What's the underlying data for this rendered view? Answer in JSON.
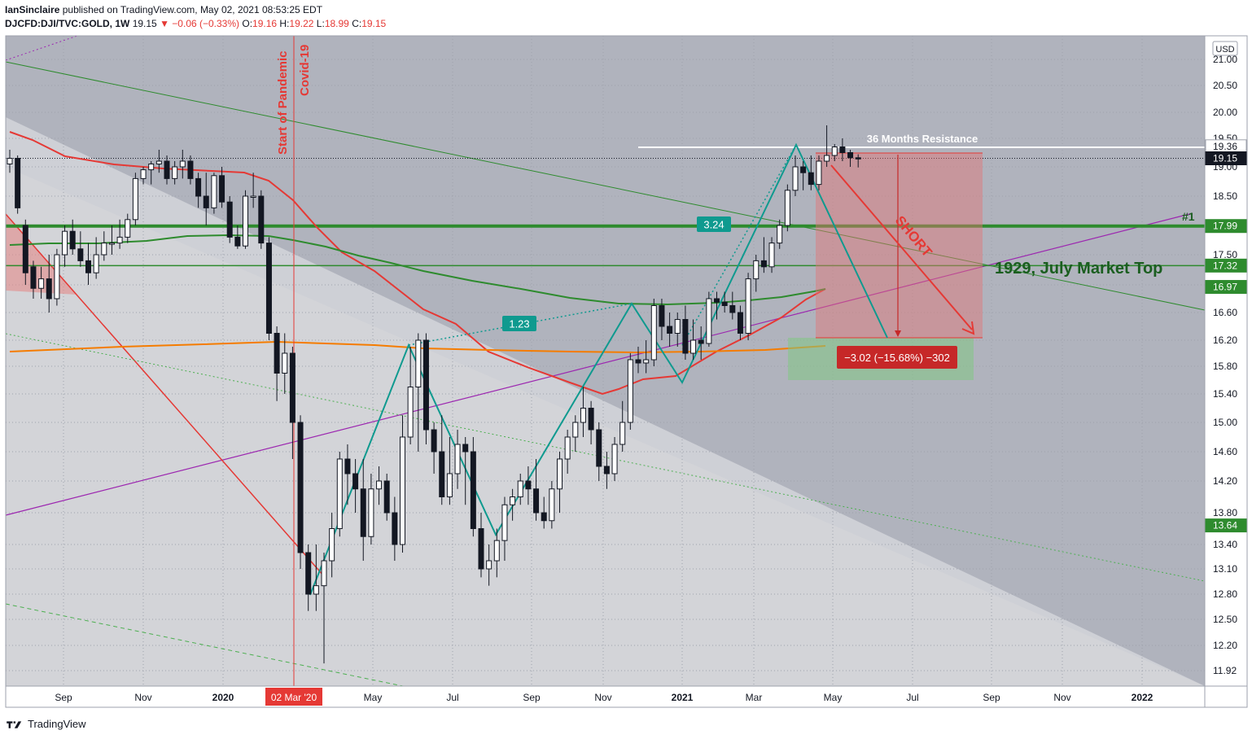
{
  "header": {
    "author": "IanSinclaire",
    "published_text": "published on TradingView.com, May 02, 2021 08:53:25 EDT",
    "symbol": "DJCFD:DJI/TVC:GOLD, 1W",
    "last": "19.15",
    "change": "−0.06 (−0.33%)",
    "change_arrow": "▼",
    "o_label": "O:",
    "o_value": "19.16",
    "h_label": "H:",
    "h_value": "19.22",
    "l_label": "L:",
    "l_value": "18.99",
    "c_label": "C:",
    "c_value": "19.15"
  },
  "footer": {
    "brand": "TradingView"
  },
  "chart_data": {
    "type": "candlestick",
    "currency_label": "USD",
    "x_ticks": [
      "Sep",
      "Nov",
      "2020",
      "May",
      "Jul",
      "Sep",
      "Nov",
      "2021",
      "Mar",
      "May",
      "Jul",
      "Sep",
      "Nov",
      "2022"
    ],
    "x_highlight_label": "02 Mar '20",
    "y_ticks": [
      "21.00",
      "20.50",
      "20.00",
      "19.50",
      "19.00",
      "18.50",
      "18.00",
      "17.50",
      "17.00",
      "16.60",
      "16.20",
      "15.80",
      "15.40",
      "15.00",
      "14.60",
      "14.20",
      "13.80",
      "13.40",
      "13.10",
      "12.80",
      "12.50",
      "12.20",
      "11.92"
    ],
    "price_tags": [
      {
        "value": "19.36",
        "style": "white"
      },
      {
        "value": "19.15",
        "style": "black"
      },
      {
        "value": "17.99",
        "style": "green"
      },
      {
        "value": "17.32",
        "style": "green"
      },
      {
        "value": "16.97",
        "style": "green"
      },
      {
        "value": "13.64",
        "style": "green"
      }
    ],
    "annotations": {
      "pandemic_line_label_1": "Start of Pandemic",
      "pandemic_line_label_2": "Covid-19",
      "resistance_label": "36 Months Resistance",
      "market_top_label": "1929, July Market Top",
      "marker_label": "#1",
      "short_label": "SHORT",
      "ratio_1": "1.23",
      "ratio_2": "3.24",
      "measure_label": "−3.02 (−15.68%) −302"
    },
    "candles": [
      [
        19.05,
        19.15,
        19.3,
        18.9
      ],
      [
        19.15,
        18.3,
        19.2,
        18.2
      ],
      [
        18.0,
        17.2,
        18.1,
        17.0
      ],
      [
        17.3,
        16.95,
        17.4,
        16.8
      ],
      [
        16.95,
        17.1,
        17.3,
        16.8
      ],
      [
        17.1,
        16.8,
        17.5,
        16.6
      ],
      [
        16.8,
        17.5,
        17.6,
        16.7
      ],
      [
        17.5,
        17.9,
        18.0,
        17.3
      ],
      [
        17.9,
        17.6,
        18.1,
        17.5
      ],
      [
        17.6,
        17.4,
        17.9,
        17.3
      ],
      [
        17.4,
        17.2,
        17.7,
        17.0
      ],
      [
        17.2,
        17.5,
        17.8,
        17.1
      ],
      [
        17.5,
        17.7,
        17.9,
        17.4
      ],
      [
        17.7,
        17.7,
        18.0,
        17.5
      ],
      [
        17.7,
        17.8,
        18.1,
        17.6
      ],
      [
        17.8,
        18.1,
        18.2,
        17.7
      ],
      [
        18.1,
        18.8,
        18.9,
        18.0
      ],
      [
        18.8,
        18.95,
        19.0,
        18.7
      ],
      [
        18.95,
        19.05,
        19.1,
        18.7
      ],
      [
        19.05,
        19.1,
        19.3,
        18.9
      ],
      [
        19.1,
        18.8,
        19.2,
        18.7
      ],
      [
        18.8,
        19.0,
        19.1,
        18.7
      ],
      [
        19.0,
        19.1,
        19.3,
        18.8
      ],
      [
        19.1,
        18.8,
        19.2,
        18.7
      ],
      [
        18.8,
        18.5,
        18.9,
        18.3
      ],
      [
        18.5,
        18.3,
        18.9,
        18.0
      ],
      [
        18.3,
        18.85,
        18.9,
        18.2
      ],
      [
        18.85,
        18.4,
        19.0,
        18.3
      ],
      [
        18.4,
        17.8,
        18.5,
        17.7
      ],
      [
        17.8,
        17.65,
        18.0,
        17.6
      ],
      [
        17.65,
        18.5,
        18.6,
        17.6
      ],
      [
        18.5,
        18.5,
        18.9,
        18.3
      ],
      [
        18.5,
        17.7,
        18.6,
        17.6
      ],
      [
        17.7,
        16.3,
        17.8,
        16.2
      ],
      [
        16.3,
        15.7,
        16.4,
        15.3
      ],
      [
        15.7,
        16.0,
        16.3,
        15.4
      ],
      [
        16.0,
        15.0,
        16.1,
        14.5
      ],
      [
        15.0,
        13.3,
        15.1,
        13.1
      ],
      [
        13.3,
        12.8,
        13.4,
        12.6
      ],
      [
        12.8,
        12.9,
        13.4,
        12.6
      ],
      [
        12.9,
        13.2,
        13.3,
        12.0
      ],
      [
        13.2,
        13.6,
        13.8,
        13.0
      ],
      [
        13.6,
        14.5,
        14.6,
        13.5
      ],
      [
        14.5,
        14.3,
        14.7,
        13.9
      ],
      [
        14.3,
        14.1,
        14.5,
        13.8
      ],
      [
        14.1,
        13.5,
        14.5,
        13.2
      ],
      [
        13.5,
        14.1,
        14.3,
        13.4
      ],
      [
        14.1,
        14.2,
        14.4,
        13.9
      ],
      [
        14.2,
        13.8,
        14.3,
        13.7
      ],
      [
        13.8,
        13.4,
        14.0,
        13.2
      ],
      [
        13.4,
        14.8,
        15.1,
        13.3
      ],
      [
        14.8,
        15.5,
        16.1,
        14.7
      ],
      [
        15.5,
        16.2,
        16.3,
        14.6
      ],
      [
        16.2,
        14.9,
        16.3,
        14.7
      ],
      [
        14.9,
        14.6,
        15.0,
        14.3
      ],
      [
        14.6,
        14.0,
        15.1,
        13.9
      ],
      [
        14.0,
        14.3,
        14.8,
        13.9
      ],
      [
        14.3,
        14.7,
        14.9,
        14.1
      ],
      [
        14.7,
        14.6,
        14.8,
        13.9
      ],
      [
        14.6,
        13.6,
        14.8,
        13.5
      ],
      [
        13.6,
        13.1,
        13.8,
        13.0
      ],
      [
        13.1,
        13.2,
        13.4,
        12.9
      ],
      [
        13.2,
        13.45,
        13.6,
        13.0
      ],
      [
        13.45,
        13.9,
        14.0,
        13.2
      ],
      [
        13.9,
        14.0,
        14.1,
        13.7
      ],
      [
        14.0,
        14.2,
        14.3,
        13.9
      ],
      [
        14.2,
        14.1,
        14.4,
        13.9
      ],
      [
        14.1,
        13.8,
        14.5,
        13.7
      ],
      [
        13.8,
        13.7,
        14.0,
        13.6
      ],
      [
        13.7,
        14.1,
        14.2,
        13.6
      ],
      [
        14.1,
        14.5,
        14.6,
        13.8
      ],
      [
        14.5,
        14.8,
        14.9,
        14.3
      ],
      [
        14.8,
        15.0,
        15.1,
        14.6
      ],
      [
        15.0,
        15.2,
        15.5,
        14.8
      ],
      [
        15.2,
        14.9,
        15.3,
        14.7
      ],
      [
        14.9,
        14.4,
        15.0,
        14.2
      ],
      [
        14.4,
        14.3,
        14.6,
        14.1
      ],
      [
        14.3,
        14.7,
        14.8,
        14.2
      ],
      [
        14.7,
        15.0,
        15.3,
        14.6
      ],
      [
        15.0,
        15.9,
        16.0,
        14.9
      ],
      [
        15.9,
        15.85,
        16.1,
        15.7
      ],
      [
        15.85,
        15.9,
        16.2,
        15.7
      ],
      [
        15.9,
        16.7,
        16.8,
        15.8
      ],
      [
        16.7,
        16.4,
        16.8,
        16.2
      ],
      [
        16.4,
        16.3,
        16.6,
        16.1
      ],
      [
        16.3,
        16.5,
        16.6,
        16.1
      ],
      [
        16.5,
        16.0,
        16.7,
        15.9
      ],
      [
        16.0,
        16.2,
        16.5,
        15.9
      ],
      [
        16.2,
        16.15,
        16.4,
        15.9
      ],
      [
        16.15,
        16.8,
        16.9,
        16.1
      ],
      [
        16.8,
        16.75,
        16.9,
        16.5
      ],
      [
        16.75,
        16.7,
        16.9,
        16.6
      ],
      [
        16.7,
        16.6,
        16.9,
        16.5
      ],
      [
        16.6,
        16.3,
        16.7,
        16.2
      ],
      [
        16.3,
        17.1,
        17.2,
        16.2
      ],
      [
        17.1,
        17.4,
        17.5,
        16.9
      ],
      [
        17.4,
        17.3,
        17.8,
        17.2
      ],
      [
        17.3,
        17.7,
        17.8,
        17.2
      ],
      [
        17.7,
        18.0,
        18.1,
        17.6
      ],
      [
        18.0,
        18.6,
        18.7,
        17.9
      ],
      [
        18.6,
        19.0,
        19.2,
        18.5
      ],
      [
        19.0,
        18.9,
        19.1,
        18.6
      ],
      [
        18.9,
        18.7,
        19.2,
        18.6
      ],
      [
        18.7,
        19.1,
        19.2,
        18.6
      ],
      [
        19.1,
        19.2,
        19.75,
        19.0
      ],
      [
        19.2,
        19.35,
        19.4,
        19.1
      ],
      [
        19.35,
        19.25,
        19.5,
        19.1
      ],
      [
        19.25,
        19.16,
        19.3,
        19.0
      ],
      [
        19.16,
        19.15,
        19.22,
        18.99
      ]
    ]
  }
}
